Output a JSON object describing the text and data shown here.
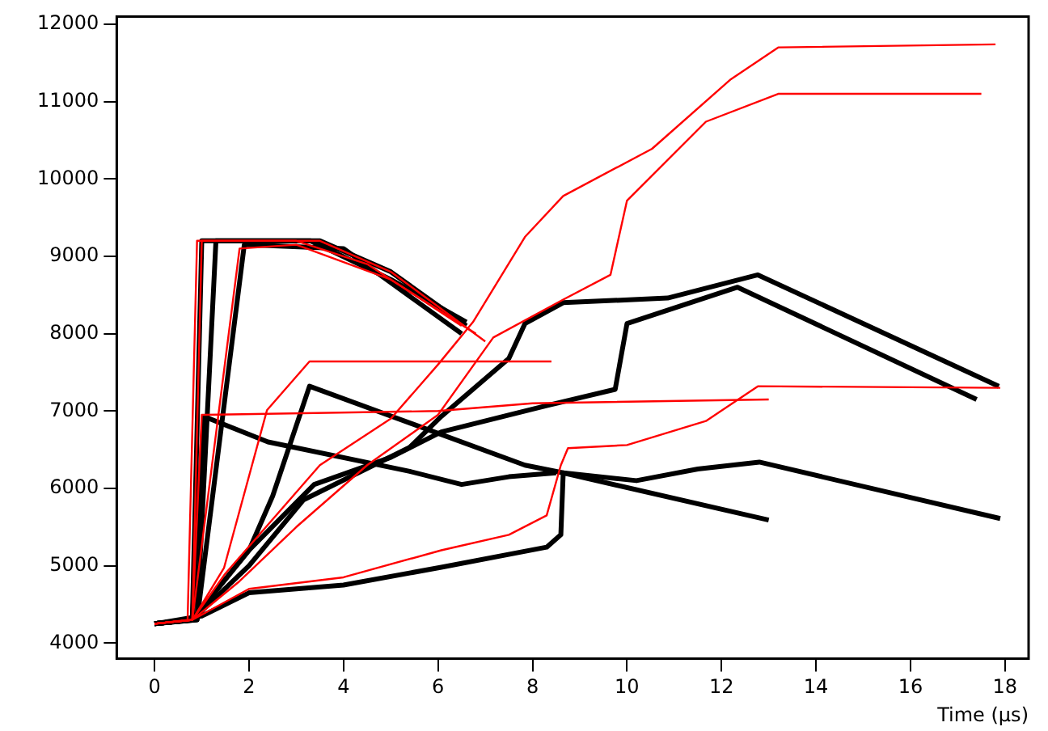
{
  "chart_data": {
    "type": "line",
    "xlabel": "Time (µs)",
    "xlim": [
      -0.8,
      18.5
    ],
    "ylim": [
      3800,
      12100
    ],
    "xticks": [
      0,
      2,
      4,
      6,
      8,
      10,
      12,
      14,
      16,
      18
    ],
    "yticks": [
      4000,
      5000,
      6000,
      7000,
      8000,
      9000,
      10000,
      11000,
      12000
    ],
    "grid": false,
    "legend": false,
    "marker": "none",
    "series": [
      {
        "color": "#ff0000",
        "x": [
          0,
          0.8,
          1.5,
          2.5,
          3.5,
          5,
          6,
          6.74,
          7.84,
          8.65,
          10.53,
          12.2,
          13.2,
          17.8
        ],
        "values": [
          4250,
          4300,
          4900,
          5600,
          6300,
          6900,
          7600,
          8150,
          9250,
          9780,
          10390,
          11290,
          11700,
          11740
        ]
      },
      {
        "color": "#ff0000",
        "x": [
          0,
          0.8,
          1.8,
          3,
          4.5,
          6,
          7.17,
          8.65,
          9.65,
          10,
          11.67,
          13.2,
          17.5
        ],
        "values": [
          4250,
          4300,
          4800,
          5500,
          6300,
          6950,
          7950,
          8440,
          8760,
          9720,
          10740,
          11100,
          11100
        ]
      },
      {
        "color": "#ff0000",
        "x": [
          0,
          0.8,
          1.47,
          2.38,
          3.28,
          8.4
        ],
        "values": [
          4250,
          4300,
          4970,
          7010,
          7640,
          7640
        ]
      },
      {
        "color": "#ff0000",
        "x": [
          0,
          0.8,
          1.0,
          6,
          8,
          13
        ],
        "values": [
          4250,
          4300,
          6950,
          7000,
          7100,
          7150
        ]
      },
      {
        "color": "#ff0000",
        "x": [
          0,
          0.8,
          2,
          4,
          6.07,
          7.5,
          8.3,
          8.6,
          8.75,
          10,
          11.67,
          12.77,
          17.9
        ],
        "values": [
          4250,
          4300,
          4700,
          4850,
          5200,
          5400,
          5650,
          6300,
          6520,
          6560,
          6870,
          7320,
          7300
        ]
      },
      {
        "color": "#ff0000",
        "x": [
          0,
          0.7,
          0.9,
          3,
          4.5,
          6.5
        ],
        "values": [
          4250,
          4300,
          9200,
          9200,
          8900,
          8100
        ]
      },
      {
        "color": "#ff0000",
        "x": [
          0,
          0.8,
          1.0,
          3.5,
          5,
          7
        ],
        "values": [
          4250,
          4300,
          9200,
          9200,
          8800,
          7900
        ]
      },
      {
        "color": "#ff0000",
        "x": [
          0,
          0.8,
          1.8,
          3,
          5,
          6.8
        ],
        "values": [
          4250,
          4300,
          9100,
          9150,
          8700,
          8000
        ]
      },
      {
        "color": "#000000",
        "x": [
          0,
          0.8,
          1.0,
          3.3,
          5,
          6.6
        ],
        "values": [
          4250,
          4300,
          9200,
          9200,
          8700,
          8150
        ]
      },
      {
        "color": "#000000",
        "x": [
          0,
          0.9,
          1.3,
          3.5,
          5,
          6.6
        ],
        "values": [
          4250,
          4300,
          9200,
          9200,
          8800,
          8100
        ]
      },
      {
        "color": "#000000",
        "x": [
          0,
          0.9,
          1.9,
          4,
          6.5
        ],
        "values": [
          4250,
          4300,
          9150,
          9100,
          8000
        ]
      },
      {
        "color": "#000000",
        "x": [
          0,
          0.8,
          1.04,
          2.4,
          5.4,
          6.5,
          7.5,
          8.5
        ],
        "values": [
          4250,
          4300,
          6930,
          6600,
          6220,
          6050,
          6150,
          6200
        ]
      },
      {
        "color": "#000000",
        "x": [
          0,
          0.8,
          2,
          2.5,
          3.28,
          7.84,
          8.65,
          13
        ],
        "values": [
          4250,
          4300,
          5200,
          5900,
          7320,
          6300,
          6200,
          5590
        ]
      },
      {
        "color": "#000000",
        "x": [
          0,
          1,
          2,
          4,
          6.07,
          8.3,
          8.6,
          8.65,
          10.2,
          11.5,
          12.8,
          17.9
        ],
        "values": [
          4250,
          4350,
          4650,
          4750,
          4980,
          5240,
          5400,
          6200,
          6100,
          6250,
          6340,
          5610
        ]
      },
      {
        "color": "#000000",
        "x": [
          0,
          0.8,
          2,
          3.15,
          5.4,
          6.07,
          7.5,
          7.84,
          8.65,
          10.86,
          12.77,
          17.87
        ],
        "values": [
          4250,
          4300,
          5000,
          5850,
          6530,
          6930,
          7680,
          8130,
          8400,
          8460,
          8760,
          7320
        ]
      },
      {
        "color": "#000000",
        "x": [
          0,
          0.8,
          2,
          3.38,
          5,
          6.07,
          8.3,
          9.75,
          10,
          12.34,
          17.4
        ],
        "values": [
          4250,
          4300,
          5200,
          6050,
          6400,
          6730,
          7070,
          7280,
          8130,
          8600,
          7150
        ]
      }
    ]
  }
}
